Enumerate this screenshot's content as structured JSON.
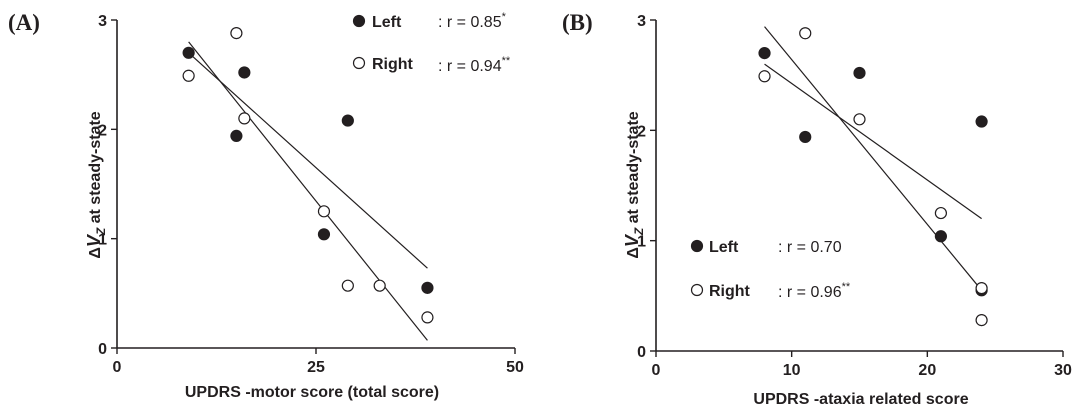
{
  "chart_data": [
    {
      "type": "scatter",
      "panel_label": "(A)",
      "xlabel": "UPDRS -motor score (total score)",
      "ylabel": "at steady-state",
      "xlim": [
        0,
        50
      ],
      "ylim": [
        0,
        3
      ],
      "x_ticks": [
        0,
        25,
        50
      ],
      "y_ticks": [
        0,
        1,
        2,
        3
      ],
      "series": [
        {
          "name": "Left",
          "marker": "filled-circle",
          "r_label": ": r = 0.85",
          "significance": "*",
          "points": [
            [
              9,
              2.7
            ],
            [
              15,
              1.94
            ],
            [
              16,
              2.52
            ],
            [
              26,
              1.04
            ],
            [
              29,
              2.08
            ],
            [
              39,
              0.55
            ]
          ],
          "fit": [
            [
              9,
              2.7
            ],
            [
              39,
              0.73
            ]
          ]
        },
        {
          "name": "Right",
          "marker": "open-circle",
          "r_label": ": r = 0.94",
          "significance": "**",
          "points": [
            [
              9,
              2.49
            ],
            [
              15,
              2.88
            ],
            [
              16,
              2.1
            ],
            [
              26,
              1.25
            ],
            [
              29,
              0.57
            ],
            [
              33,
              0.57
            ],
            [
              39,
              0.28
            ]
          ],
          "fit": [
            [
              9,
              2.8
            ],
            [
              39,
              0.07
            ]
          ]
        }
      ],
      "legend_position": "top-right",
      "grid": false
    },
    {
      "type": "scatter",
      "panel_label": "(B)",
      "xlabel": "UPDRS -ataxia related score",
      "ylabel": "at steady-state",
      "xlim": [
        0,
        30
      ],
      "ylim": [
        0,
        3
      ],
      "x_ticks": [
        0,
        10,
        20,
        30
      ],
      "y_ticks": [
        0,
        1,
        2,
        3
      ],
      "series": [
        {
          "name": "Left",
          "marker": "filled-circle",
          "r_label": ": r = 0.70",
          "significance": "",
          "points": [
            [
              8,
              2.7
            ],
            [
              11,
              1.94
            ],
            [
              15,
              2.52
            ],
            [
              21,
              1.04
            ],
            [
              24,
              2.08
            ],
            [
              24,
              0.55
            ]
          ],
          "fit": [
            [
              8,
              2.6
            ],
            [
              24,
              1.2
            ]
          ]
        },
        {
          "name": "Right",
          "marker": "open-circle",
          "r_label": ": r = 0.96",
          "significance": "**",
          "points": [
            [
              8,
              2.49
            ],
            [
              11,
              2.88
            ],
            [
              15,
              2.1
            ],
            [
              21,
              1.25
            ],
            [
              24,
              0.57
            ],
            [
              24,
              0.28
            ]
          ],
          "fit": [
            [
              8,
              2.94
            ],
            [
              24,
              0.55
            ]
          ]
        }
      ],
      "legend_position": "bottom-left",
      "grid": false
    }
  ]
}
